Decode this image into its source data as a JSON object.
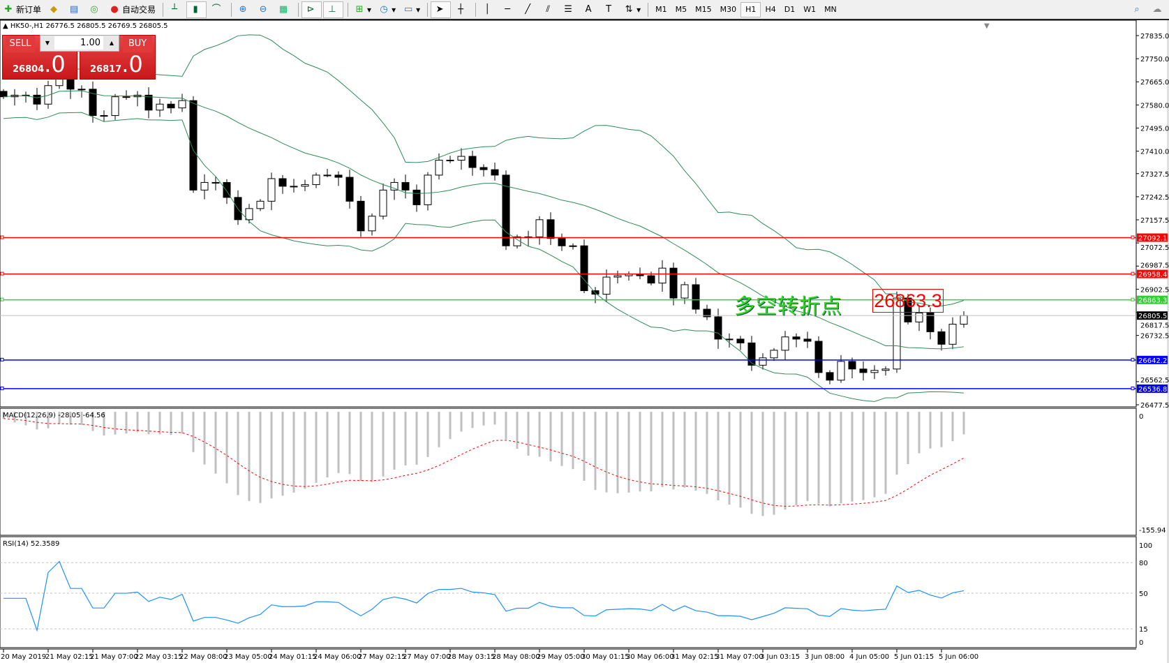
{
  "toolbar": {
    "new_order": "新订单",
    "auto_trading": "自动交易",
    "timeframes": [
      "M1",
      "M5",
      "M15",
      "M30",
      "H1",
      "H4",
      "D1",
      "W1",
      "MN"
    ],
    "active_timeframe": "H1",
    "icons": [
      "new-order-icon",
      "history-center-icon",
      "market-watch-icon",
      "signals-icon",
      "auto-trading-icon",
      "bar-chart-icon",
      "candlestick-icon",
      "line-chart-icon",
      "zoom-in-icon",
      "zoom-out-icon",
      "tile-windows-icon",
      "chart-shift-icon",
      "auto-scroll-icon",
      "indicators-icon",
      "periods-icon",
      "templates-icon",
      "cursor-icon",
      "crosshair-icon",
      "vertical-line-icon",
      "horizontal-line-icon",
      "trendline-icon",
      "equidistant-channel-icon",
      "fibonacci-icon",
      "text-icon",
      "text-label-icon",
      "arrows-icon",
      "search-icon",
      "chat-icon"
    ]
  },
  "chart_header": {
    "symbol": "HK50-,H1",
    "ohlc": "26776.5 26805.5 26769.5 26805.5"
  },
  "trade_panel": {
    "sell_label": "SELL",
    "buy_label": "BUY",
    "lot": "1.00",
    "sell_price_main": "26804",
    "sell_price_big": ".0",
    "buy_price_main": "26817",
    "buy_price_big": ".0"
  },
  "annotation": {
    "text": "多空转折点",
    "box_value": "26863.3"
  },
  "chart_data": {
    "type": "candlestick",
    "symbol": "HK50-",
    "timeframe": "H1",
    "price_axis": {
      "range": [
        26477.5,
        27835.0
      ],
      "ticks": [
        "27835.0",
        "27750.0",
        "27665.0",
        "27580.0",
        "27495.0",
        "27410.0",
        "27327.5",
        "27242.5",
        "27157.5",
        "27072.5",
        "26987.5",
        "26902.5",
        "26817.5",
        "26732.5",
        "26562.5",
        "26477.5"
      ]
    },
    "closes": [
      27610,
      27616,
      27616,
      27583,
      27651,
      27706,
      27638,
      27638,
      27541,
      27541,
      27610,
      27610,
      27616,
      27561,
      27583,
      27569,
      27596,
      27267,
      27295,
      27295,
      27240,
      27158,
      27199,
      27226,
      27309,
      27281,
      27281,
      27287,
      27322,
      27322,
      27314,
      27226,
      27117,
      27171,
      27267,
      27295,
      27267,
      27213,
      27322,
      27377,
      27377,
      27391,
      27350,
      27342,
      27322,
      27062,
      27095,
      27095,
      27158,
      27089,
      27062,
      27062,
      26897,
      26884,
      26947,
      26952,
      26958,
      26952,
      26925,
      26980,
      26870,
      26919,
      26829,
      26801,
      26719,
      26719,
      26705,
      26623,
      26650,
      26678,
      26727,
      26719,
      26711,
      26596,
      26568,
      26637,
      26609,
      26596,
      26604,
      26609,
      26870,
      26782,
      26815,
      26746,
      26700,
      26774,
      26805.5
    ],
    "current_price": {
      "value": 26805.5,
      "label": "26805.5",
      "color": "#000000"
    },
    "horizontal_lines": [
      {
        "value": 27092.1,
        "label": "27092.1",
        "color": "#ff0000"
      },
      {
        "value": 26958.4,
        "label": "26958.4",
        "color": "#ff0000"
      },
      {
        "value": 26863.3,
        "label": "26863.3",
        "color": "#32cd32"
      },
      {
        "value": 26642.2,
        "label": "26642.2",
        "color": "#0000ff"
      },
      {
        "value": 26536.8,
        "label": "26536.8",
        "color": "#0000ff"
      }
    ],
    "bollinger_color": "#2e8b57",
    "time_labels": [
      "20 May 2019",
      "21 May 02:15",
      "21 May 07:00",
      "22 May 03:15",
      "22 May 08:00",
      "23 May 05:00",
      "24 May 01:15",
      "24 May 06:00",
      "27 May 02:15",
      "27 May 07:00",
      "28 May 03:15",
      "28 May 08:00",
      "29 May 05:00",
      "30 May 01:15",
      "30 May 06:00",
      "31 May 02:15",
      "31 May 07:00",
      "3 Jun 03:15",
      "3 Jun 08:00",
      "4 Jun 05:00",
      "5 Jun 01:15",
      "5 Jun 06:00"
    ],
    "macd": {
      "label": "MACD(12,26,9) -28.05 -64.56",
      "range": [
        -155.94,
        0
      ],
      "ticks": [
        "0",
        "-155.94"
      ],
      "histogram_color": "#c0c0c0",
      "signal_color": "#ff0000"
    },
    "rsi": {
      "label": "RSI(14) 52.3589",
      "range": [
        0,
        100
      ],
      "levels": [
        80,
        50,
        15
      ],
      "ticks": [
        "100",
        "80",
        "50",
        "15",
        "0"
      ],
      "color": "#1e90ff"
    }
  }
}
